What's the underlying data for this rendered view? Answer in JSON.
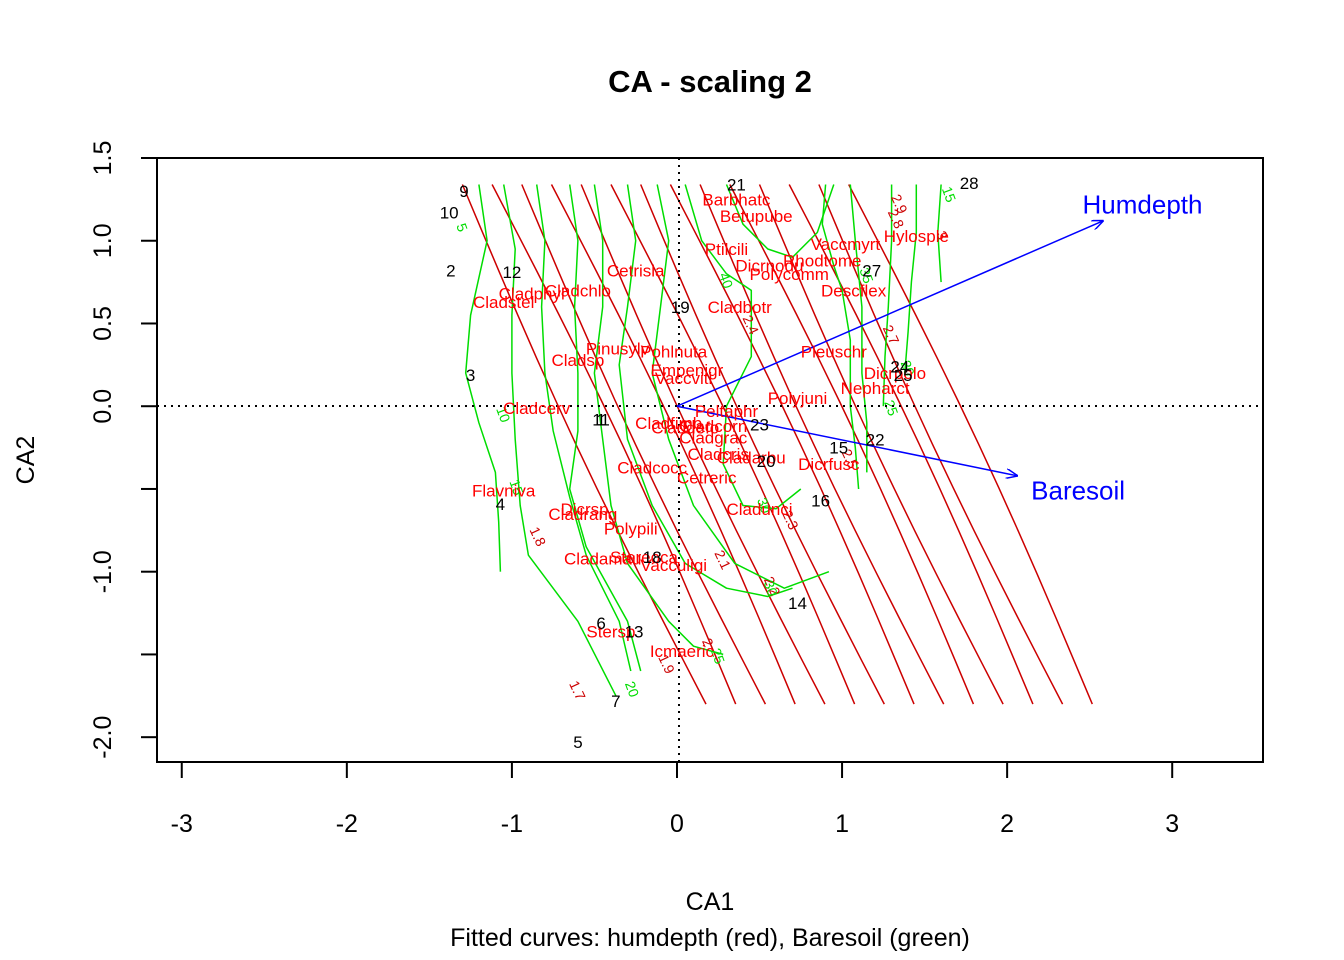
{
  "chart_data": {
    "type": "scatter",
    "title": "CA - scaling 2",
    "xlabel": "CA1",
    "ylabel": "CA2",
    "subtitle": "Fitted curves: humdepth (red), Baresoil (green)",
    "xlim": [
      -3.15,
      3.55
    ],
    "ylim": [
      -2.15,
      1.5
    ],
    "x_ticks": [
      -3,
      -2,
      -1,
      0,
      1,
      2,
      3
    ],
    "y_ticks": [
      -2.0,
      -1.5,
      -1.0,
      -0.5,
      0.0,
      0.5,
      1.0,
      1.5
    ],
    "x_tick_labels": [
      "-3",
      "-2",
      "-1",
      "0",
      "1",
      "2",
      "3"
    ],
    "y_tick_labels": [
      "-2.0",
      "",
      "-1.0",
      "",
      "0.0",
      "0.5",
      "1.0",
      "1.5"
    ],
    "reference_lines": {
      "x": 0,
      "y": 0,
      "style": "dotted"
    },
    "colors": {
      "sites": "#000000",
      "species": "#ff0000",
      "humdepth_curves": "#cc0000",
      "baresoil_curves": "#00dd00",
      "arrows": "#0000ff"
    },
    "sites": [
      {
        "label": "1",
        "x": -0.46,
        "y": -0.08
      },
      {
        "label": "2",
        "x": -1.37,
        "y": 0.82
      },
      {
        "label": "3",
        "x": -1.25,
        "y": 0.19
      },
      {
        "label": "4",
        "x": -1.07,
        "y": -0.59
      },
      {
        "label": "5",
        "x": -0.6,
        "y": -2.03
      },
      {
        "label": "6",
        "x": -0.46,
        "y": -1.31
      },
      {
        "label": "7",
        "x": -0.37,
        "y": -1.78
      },
      {
        "label": "9",
        "x": -1.29,
        "y": 1.3
      },
      {
        "label": "10",
        "x": -1.38,
        "y": 1.17
      },
      {
        "label": "11",
        "x": -0.46,
        "y": -0.08
      },
      {
        "label": "12",
        "x": -1.0,
        "y": 0.81
      },
      {
        "label": "13",
        "x": -0.26,
        "y": -1.36
      },
      {
        "label": "14",
        "x": 0.73,
        "y": -1.19
      },
      {
        "label": "15",
        "x": 0.98,
        "y": -0.25
      },
      {
        "label": "16",
        "x": 0.87,
        "y": -0.57
      },
      {
        "label": "18",
        "x": -0.15,
        "y": -0.91
      },
      {
        "label": "19",
        "x": 0.02,
        "y": 0.6
      },
      {
        "label": "20",
        "x": 0.54,
        "y": -0.33
      },
      {
        "label": "21",
        "x": 0.36,
        "y": 1.34
      },
      {
        "label": "22",
        "x": 1.2,
        "y": -0.2
      },
      {
        "label": "23",
        "x": 0.5,
        "y": -0.11
      },
      {
        "label": "24",
        "x": 1.35,
        "y": 0.24
      },
      {
        "label": "25",
        "x": 1.37,
        "y": 0.19
      },
      {
        "label": "27",
        "x": 1.18,
        "y": 0.82
      },
      {
        "label": "28",
        "x": 1.77,
        "y": 1.35
      }
    ],
    "species": [
      {
        "label": "Barbhatc",
        "x": 0.36,
        "y": 1.25
      },
      {
        "label": "Betupube",
        "x": 0.48,
        "y": 1.15
      },
      {
        "label": "Ptilcili",
        "x": 0.3,
        "y": 0.95
      },
      {
        "label": "Dicrnodu",
        "x": 0.56,
        "y": 0.85
      },
      {
        "label": "Rhodtome",
        "x": 0.88,
        "y": 0.88
      },
      {
        "label": "Polycomm",
        "x": 0.68,
        "y": 0.8
      },
      {
        "label": "Vaccmyrt",
        "x": 1.02,
        "y": 0.98
      },
      {
        "label": "Hylosple",
        "x": 1.45,
        "y": 1.03
      },
      {
        "label": "Descflex",
        "x": 1.07,
        "y": 0.7
      },
      {
        "label": "Cetrisla",
        "x": -0.25,
        "y": 0.82
      },
      {
        "label": "Cladchlo",
        "x": -0.6,
        "y": 0.7
      },
      {
        "label": "Cladphyl",
        "x": -0.88,
        "y": 0.68
      },
      {
        "label": "Cladstel",
        "x": -1.05,
        "y": 0.63
      },
      {
        "label": "Cladbotr",
        "x": 0.38,
        "y": 0.6
      },
      {
        "label": "Pinusylv",
        "x": -0.36,
        "y": 0.35
      },
      {
        "label": "Pohlnuta",
        "x": -0.02,
        "y": 0.33
      },
      {
        "label": "Cladsp",
        "x": -0.6,
        "y": 0.28
      },
      {
        "label": "Empenigr",
        "x": 0.06,
        "y": 0.22
      },
      {
        "label": "Vaccviti",
        "x": 0.04,
        "y": 0.17
      },
      {
        "label": "Pleuschr",
        "x": 0.95,
        "y": 0.33
      },
      {
        "label": "Dicrpolo",
        "x": 1.32,
        "y": 0.2
      },
      {
        "label": "Nepharct",
        "x": 1.2,
        "y": 0.11
      },
      {
        "label": "Polyjuni",
        "x": 0.73,
        "y": 0.05
      },
      {
        "label": "Cladcerv",
        "x": -0.85,
        "y": -0.01
      },
      {
        "label": "Peltaphr",
        "x": 0.3,
        "y": -0.03
      },
      {
        "label": "Cladfimb",
        "x": -0.05,
        "y": -0.1
      },
      {
        "label": "Cladcorn",
        "x": 0.22,
        "y": -0.12
      },
      {
        "label": "Claddefo",
        "x": 0.05,
        "y": -0.13
      },
      {
        "label": "Cladgrac",
        "x": 0.22,
        "y": -0.19
      },
      {
        "label": "Cladcris",
        "x": 0.25,
        "y": -0.29
      },
      {
        "label": "Cladarbu",
        "x": 0.45,
        "y": -0.31
      },
      {
        "label": "Dicrfusc",
        "x": 0.92,
        "y": -0.35
      },
      {
        "label": "Cladcocc",
        "x": -0.15,
        "y": -0.37
      },
      {
        "label": "Cetreric",
        "x": 0.18,
        "y": -0.43
      },
      {
        "label": "Flavniva",
        "x": -1.05,
        "y": -0.51
      },
      {
        "label": "Dicrsp",
        "x": -0.56,
        "y": -0.62
      },
      {
        "label": "Cladunci",
        "x": 0.5,
        "y": -0.62
      },
      {
        "label": "Cladrang",
        "x": -0.57,
        "y": -0.65
      },
      {
        "label": "Polypili",
        "x": -0.28,
        "y": -0.74
      },
      {
        "label": "Cladamau",
        "x": -0.45,
        "y": -0.92
      },
      {
        "label": "Stereoca",
        "x": -0.2,
        "y": -0.91
      },
      {
        "label": "Vacculigi",
        "x": -0.02,
        "y": -0.96
      },
      {
        "label": "Stersp",
        "x": -0.4,
        "y": -1.36
      },
      {
        "label": "Icmaeric",
        "x": 0.03,
        "y": -1.48
      }
    ],
    "arrows": [
      {
        "name": "Humdepth",
        "x": 2.58,
        "y": 1.12,
        "label_x": 2.82,
        "label_y": 1.22
      },
      {
        "name": "Baresoil",
        "x": 2.06,
        "y": -0.42,
        "label_x": 2.43,
        "label_y": -0.51
      }
    ],
    "humdepth_curves": {
      "levels": [
        1.7,
        1.8,
        1.9,
        2.0,
        2.1,
        2.2,
        2.3,
        2.4,
        2.5,
        2.6,
        2.7,
        2.8,
        2.9,
        3.0
      ],
      "labels": [
        {
          "text": "1.7",
          "x": -0.63,
          "y": -1.73
        },
        {
          "text": "1.8",
          "x": -0.87,
          "y": -0.8
        },
        {
          "text": "1.9",
          "x": -0.09,
          "y": -1.57
        },
        {
          "text": "2",
          "x": 0.16,
          "y": -1.44
        },
        {
          "text": "2.1",
          "x": 0.25,
          "y": -0.94
        },
        {
          "text": "2.2",
          "x": 0.55,
          "y": -1.1
        },
        {
          "text": "2.3",
          "x": 0.66,
          "y": -0.7
        },
        {
          "text": "2.4",
          "x": 0.42,
          "y": 0.48
        },
        {
          "text": "2.5",
          "x": 1.02,
          "y": -0.33
        },
        {
          "text": "2.7",
          "x": 1.27,
          "y": 0.42
        },
        {
          "text": "2.8",
          "x": 1.3,
          "y": 1.12
        },
        {
          "text": "2.9",
          "x": 1.32,
          "y": 1.21
        },
        {
          "text": "3",
          "x": 1.58,
          "y": 1.02
        }
      ]
    },
    "baresoil_curves": {
      "levels": [
        5,
        10,
        15,
        20,
        25,
        30,
        35,
        40
      ],
      "labels": [
        {
          "text": "5",
          "x": -1.33,
          "y": 1.07
        },
        {
          "text": "10",
          "x": -1.08,
          "y": -0.06
        },
        {
          "text": "15",
          "x": -1.0,
          "y": -0.5
        },
        {
          "text": "20",
          "x": -0.3,
          "y": -1.72
        },
        {
          "text": "25",
          "x": 0.22,
          "y": -1.52
        },
        {
          "text": "30",
          "x": 0.54,
          "y": -1.11
        },
        {
          "text": "30",
          "x": 0.5,
          "y": -0.61
        },
        {
          "text": "40",
          "x": 0.27,
          "y": 0.75
        },
        {
          "text": "35",
          "x": 1.12,
          "y": 0.78
        },
        {
          "text": "25",
          "x": 1.27,
          "y": -0.02
        },
        {
          "text": "20",
          "x": 1.37,
          "y": 0.22
        },
        {
          "text": "15",
          "x": 1.62,
          "y": 1.27
        }
      ]
    }
  }
}
